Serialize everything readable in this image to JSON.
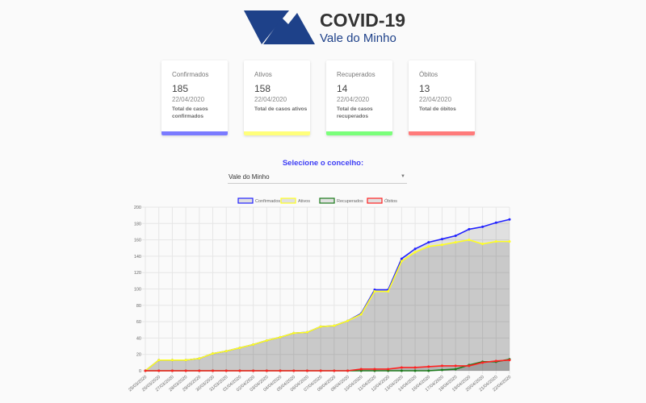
{
  "header": {
    "title": "COVID-19",
    "subtitle": "Vale do Minho",
    "logo": "VM-mountain-logo",
    "logo_color": "#1e4189"
  },
  "cards": [
    {
      "label": "Confirmados",
      "value": "185",
      "date": "22/04/2020",
      "desc": "Total de casos confirmados",
      "color": "#7b7bff"
    },
    {
      "label": "Ativos",
      "value": "158",
      "date": "22/04/2020",
      "desc": "Total de casos ativos",
      "color": "#ffff7b"
    },
    {
      "label": "Recuperados",
      "value": "14",
      "date": "22/04/2020",
      "desc": "Total de casos recuperados",
      "color": "#7bff7b"
    },
    {
      "label": "Óbitos",
      "value": "13",
      "date": "22/04/2020",
      "desc": "Total de óbitos",
      "color": "#ff7b7b"
    }
  ],
  "selector": {
    "label": "Selecione o concelho:",
    "value": "Vale do Minho"
  },
  "chart_data": {
    "type": "line",
    "fill": "area",
    "grid": true,
    "legend_position": "top",
    "ylim": [
      0,
      200
    ],
    "yticks": [
      0,
      20,
      40,
      60,
      80,
      100,
      120,
      140,
      160,
      180,
      200
    ],
    "x": [
      "25/03/2020",
      "26/03/2020",
      "27/03/2020",
      "28/03/2020",
      "29/03/2020",
      "30/03/2020",
      "31/03/2020",
      "01/04/2020",
      "02/04/2020",
      "03/04/2020",
      "04/04/2020",
      "05/04/2020",
      "06/04/2020",
      "07/04/2020",
      "08/04/2020",
      "09/04/2020",
      "10/04/2020",
      "11/04/2020",
      "12/04/2020",
      "13/04/2020",
      "14/04/2020",
      "16/04/2020",
      "17/04/2020",
      "18/04/2020",
      "19/04/2020",
      "20/04/2020",
      "21/04/2020",
      "22/04/2020"
    ],
    "series": [
      {
        "name": "Confirmados",
        "color": "#2222ff",
        "values": [
          0,
          13,
          13,
          13,
          15,
          21,
          24,
          28,
          32,
          37,
          41,
          46,
          47,
          54,
          55,
          61,
          70,
          99,
          99,
          137,
          149,
          157,
          161,
          165,
          173,
          176,
          181,
          185
        ]
      },
      {
        "name": "Ativos",
        "color": "#ffff22",
        "values": [
          0,
          13,
          13,
          13,
          15,
          21,
          24,
          28,
          32,
          37,
          41,
          46,
          47,
          54,
          55,
          61,
          69,
          97,
          97,
          134,
          145,
          152,
          154,
          157,
          160,
          155,
          158,
          158
        ]
      },
      {
        "name": "Recuperados",
        "color": "#1a7a1a",
        "values": [
          0,
          0,
          0,
          0,
          0,
          0,
          0,
          0,
          0,
          0,
          0,
          0,
          0,
          0,
          0,
          0,
          0,
          0,
          0,
          0,
          0,
          0,
          1,
          2,
          7,
          11,
          11,
          14
        ]
      },
      {
        "name": "Óbitos",
        "color": "#ff2222",
        "values": [
          0,
          0,
          0,
          0,
          0,
          0,
          0,
          0,
          0,
          0,
          0,
          0,
          0,
          0,
          0,
          0,
          2,
          2,
          2,
          4,
          4,
          5,
          6,
          6,
          6,
          10,
          12,
          13
        ]
      }
    ]
  }
}
